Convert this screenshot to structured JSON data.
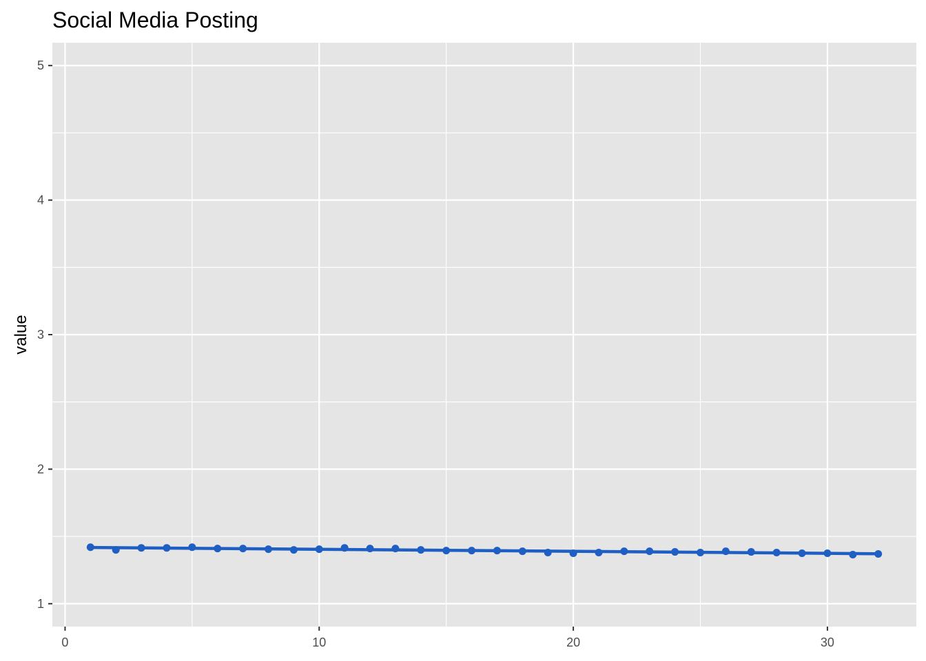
{
  "chart_data": {
    "type": "line",
    "title": "Social Media Posting",
    "xlabel": "",
    "ylabel": "value",
    "xlim": [
      -0.5,
      33.5
    ],
    "ylim": [
      0.83,
      5.17
    ],
    "x_ticks": [
      0,
      10,
      20,
      30
    ],
    "y_ticks": [
      1,
      2,
      3,
      4,
      5
    ],
    "grid": true,
    "legend": "none",
    "colors": {
      "panel_background": "#e5e5e5",
      "grid": "#ffffff",
      "series": "#1f5fc4"
    },
    "series": [
      {
        "x": [
          1,
          2,
          3,
          4,
          5,
          6,
          7,
          8,
          9,
          10,
          11,
          12,
          13,
          14,
          15,
          16,
          17,
          18,
          19,
          20,
          21,
          22,
          23,
          24,
          25,
          26,
          27,
          28,
          29,
          30,
          31,
          32
        ],
        "values": [
          1.42,
          1.4,
          1.415,
          1.415,
          1.42,
          1.41,
          1.41,
          1.405,
          1.4,
          1.405,
          1.415,
          1.41,
          1.41,
          1.4,
          1.395,
          1.395,
          1.395,
          1.39,
          1.38,
          1.375,
          1.38,
          1.39,
          1.39,
          1.385,
          1.38,
          1.39,
          1.385,
          1.38,
          1.375,
          1.375,
          1.365,
          1.37
        ]
      }
    ]
  }
}
